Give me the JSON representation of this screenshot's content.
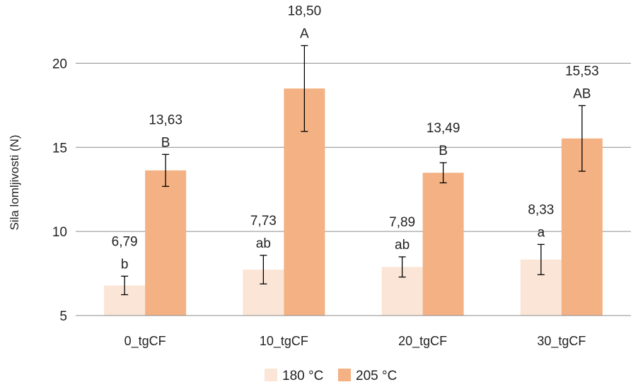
{
  "chart_data": {
    "type": "bar",
    "ylabel": "Sila lomljivosti (N)",
    "xlabel": "",
    "ylim": [
      5,
      22.5
    ],
    "yticks": [
      "5",
      "10",
      "15",
      "20"
    ],
    "grid": true,
    "legend_position": "bottom",
    "categories": [
      "0_tgCF",
      "10_tgCF",
      "20_tgCF",
      "30_tgCF"
    ],
    "series": [
      {
        "name": "180 °C",
        "color": "#FBE5D6",
        "values": [
          6.79,
          7.73,
          7.89,
          8.33
        ],
        "errors": [
          0.55,
          0.85,
          0.6,
          0.9
        ],
        "value_labels": [
          "6,79",
          "7,73",
          "7,89",
          "8,33"
        ],
        "letters": [
          "b",
          "ab",
          "ab",
          "a"
        ]
      },
      {
        "name": "205 °C",
        "color": "#F4B183",
        "values": [
          13.63,
          18.5,
          13.49,
          15.53
        ],
        "errors": [
          0.95,
          2.55,
          0.6,
          1.95
        ],
        "value_labels": [
          "13,63",
          "18,50",
          "13,49",
          "15,53"
        ],
        "letters": [
          "B",
          "A",
          "B",
          "AB"
        ]
      }
    ]
  }
}
